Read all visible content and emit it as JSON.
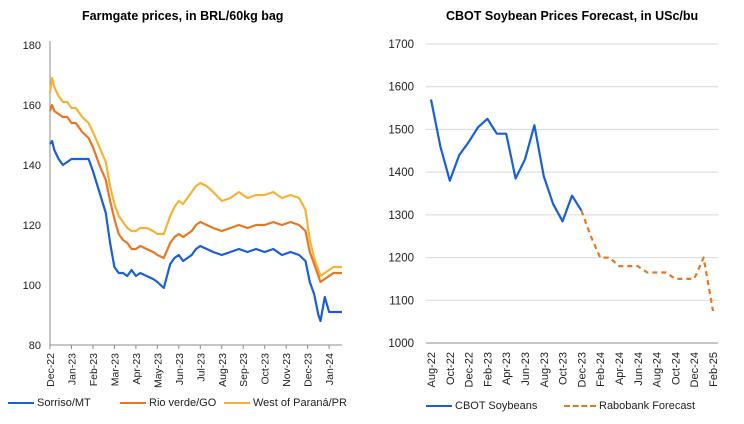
{
  "colors": {
    "sorriso": "#1a5fd6",
    "rio_verde": "#e87722",
    "west_parana": "#f5b335",
    "cbot": "#1a5fd6",
    "forecast": "#e87722",
    "grid": "#d9d9d9",
    "axis": "#8c8c8c"
  },
  "chart_data": [
    {
      "type": "line",
      "title": "Farmgate prices, in BRL/60kg bag",
      "xlabel": "",
      "ylabel": "",
      "ylim": [
        80,
        180
      ],
      "yticks": [
        80,
        100,
        120,
        140,
        160,
        180
      ],
      "grid": false,
      "legend_position": "bottom",
      "x_tick_labels": [
        "Dec-22",
        "Jan-23",
        "Feb-23",
        "Mar-23",
        "Apr-23",
        "May-23",
        "Jun-23",
        "Jul-23",
        "Aug-23",
        "Sep-23",
        "Oct-23",
        "Nov-23",
        "Dec-23",
        "Jan-24"
      ],
      "x": [
        0,
        0.1,
        0.2,
        0.4,
        0.6,
        0.8,
        1.0,
        1.2,
        1.5,
        1.8,
        2.0,
        2.3,
        2.6,
        2.8,
        3.0,
        3.2,
        3.4,
        3.6,
        3.8,
        4.0,
        4.2,
        4.5,
        4.8,
        5.0,
        5.3,
        5.6,
        5.8,
        6.0,
        6.2,
        6.4,
        6.6,
        6.8,
        7.0,
        7.3,
        7.6,
        8.0,
        8.4,
        8.8,
        9.2,
        9.6,
        10.0,
        10.4,
        10.8,
        11.2,
        11.6,
        11.9,
        12.1,
        12.3,
        12.5,
        12.6,
        12.8,
        13.0,
        13.2,
        13.4,
        13.6
      ],
      "series": [
        {
          "name": "Sorriso/MT",
          "values": [
            147,
            148,
            145,
            142,
            140,
            141,
            142,
            142,
            142,
            142,
            138,
            131,
            124,
            114,
            106,
            104,
            104,
            103,
            105,
            103,
            104,
            103,
            102,
            101,
            99,
            107,
            109,
            110,
            108,
            109,
            110,
            112,
            113,
            112,
            111,
            110,
            111,
            112,
            111,
            112,
            111,
            112,
            110,
            111,
            110,
            108,
            101,
            97,
            90,
            88,
            96,
            91,
            91,
            91,
            91
          ]
        },
        {
          "name": "Rio verde/GO",
          "values": [
            158,
            160,
            158,
            157,
            156,
            156,
            154,
            154,
            151,
            149,
            146,
            140,
            135,
            128,
            122,
            117,
            115,
            114,
            112,
            112,
            113,
            112,
            111,
            110,
            109,
            114,
            116,
            117,
            116,
            117,
            118,
            120,
            121,
            120,
            119,
            118,
            119,
            120,
            119,
            120,
            120,
            121,
            120,
            121,
            120,
            118,
            111,
            107,
            103,
            101,
            102,
            103,
            104,
            104,
            104
          ]
        },
        {
          "name": "West of Paraná/PR",
          "values": [
            164,
            169,
            166,
            163,
            161,
            161,
            159,
            159,
            156,
            154,
            151,
            146,
            141,
            133,
            127,
            123,
            121,
            119,
            118,
            118,
            119,
            119,
            118,
            117,
            117,
            123,
            126,
            128,
            127,
            129,
            131,
            133,
            134,
            133,
            131,
            128,
            129,
            131,
            129,
            130,
            130,
            131,
            129,
            130,
            129,
            125,
            115,
            109,
            105,
            103,
            104,
            105,
            106,
            106,
            106
          ]
        }
      ]
    },
    {
      "type": "line",
      "title": "CBOT Soybean Prices Forecast, in USc/bu",
      "xlabel": "",
      "ylabel": "",
      "ylim": [
        1000,
        1700
      ],
      "yticks": [
        1000,
        1100,
        1200,
        1300,
        1400,
        1500,
        1600,
        1700
      ],
      "grid": true,
      "legend_position": "bottom",
      "x_tick_labels": [
        "Aug-22",
        "Oct-22",
        "Dec-22",
        "Feb-23",
        "Apr-23",
        "Jun-23",
        "Aug-23",
        "Oct-23",
        "Dec-23",
        "Feb-24",
        "Apr-24",
        "Jun-24",
        "Aug-24",
        "Oct-24",
        "Dec-24",
        "Feb-25"
      ],
      "categories": [
        "Aug-22",
        "Sep-22",
        "Oct-22",
        "Nov-22",
        "Dec-22",
        "Jan-23",
        "Feb-23",
        "Mar-23",
        "Apr-23",
        "May-23",
        "Jun-23",
        "Jul-23",
        "Aug-23",
        "Sep-23",
        "Oct-23",
        "Nov-23",
        "Dec-23",
        "Jan-24",
        "Feb-24",
        "Mar-24",
        "Apr-24",
        "May-24",
        "Jun-24",
        "Jul-24",
        "Aug-24",
        "Sep-24",
        "Oct-24",
        "Nov-24",
        "Dec-24",
        "Jan-25",
        "Feb-25"
      ],
      "series": [
        {
          "name": "CBOT Soybeans",
          "style": "solid",
          "values": [
            1570,
            1460,
            1380,
            1440,
            1470,
            1505,
            1525,
            1490,
            1490,
            1385,
            1430,
            1510,
            1390,
            1325,
            1285,
            1345,
            1310,
            null,
            null,
            null,
            null,
            null,
            null,
            null,
            null,
            null,
            null,
            null,
            null,
            null,
            null
          ]
        },
        {
          "name": "Rabobank Forecast",
          "style": "dashed",
          "values": [
            null,
            null,
            null,
            null,
            null,
            null,
            null,
            null,
            null,
            null,
            null,
            null,
            null,
            null,
            null,
            null,
            1310,
            1250,
            1200,
            1200,
            1180,
            1180,
            1180,
            1165,
            1165,
            1165,
            1150,
            1150,
            1150,
            1200,
            1075
          ]
        }
      ]
    }
  ]
}
